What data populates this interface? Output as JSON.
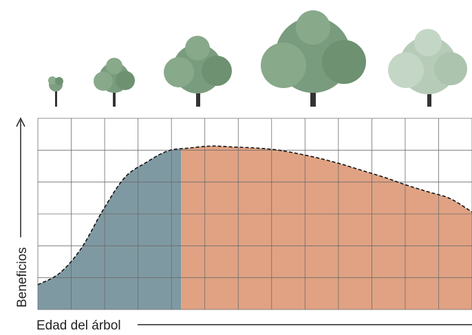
{
  "chart_data": {
    "type": "area",
    "xlabel": "Edad del árbol",
    "ylabel": "Beneficios",
    "grid": true,
    "x_range": [
      0,
      100
    ],
    "y_range": [
      0,
      100
    ],
    "series": [
      {
        "x": [
          0,
          5,
          10,
          15,
          20,
          25,
          30,
          35,
          40,
          45,
          50,
          55,
          60,
          65,
          70,
          75,
          80,
          85,
          90,
          95,
          100
        ],
        "values": [
          13,
          19,
          32,
          52,
          69,
          77,
          83,
          84.5,
          85.5,
          85,
          84.5,
          83.5,
          81.5,
          79,
          76,
          72.5,
          69,
          65,
          61.5,
          58,
          51
        ]
      }
    ],
    "regions": [
      {
        "x_range": [
          0,
          33
        ],
        "color": "#7f99a2"
      },
      {
        "x_range": [
          33,
          100
        ],
        "color": "#e0a283"
      }
    ],
    "tree_growth_stages": 5
  }
}
